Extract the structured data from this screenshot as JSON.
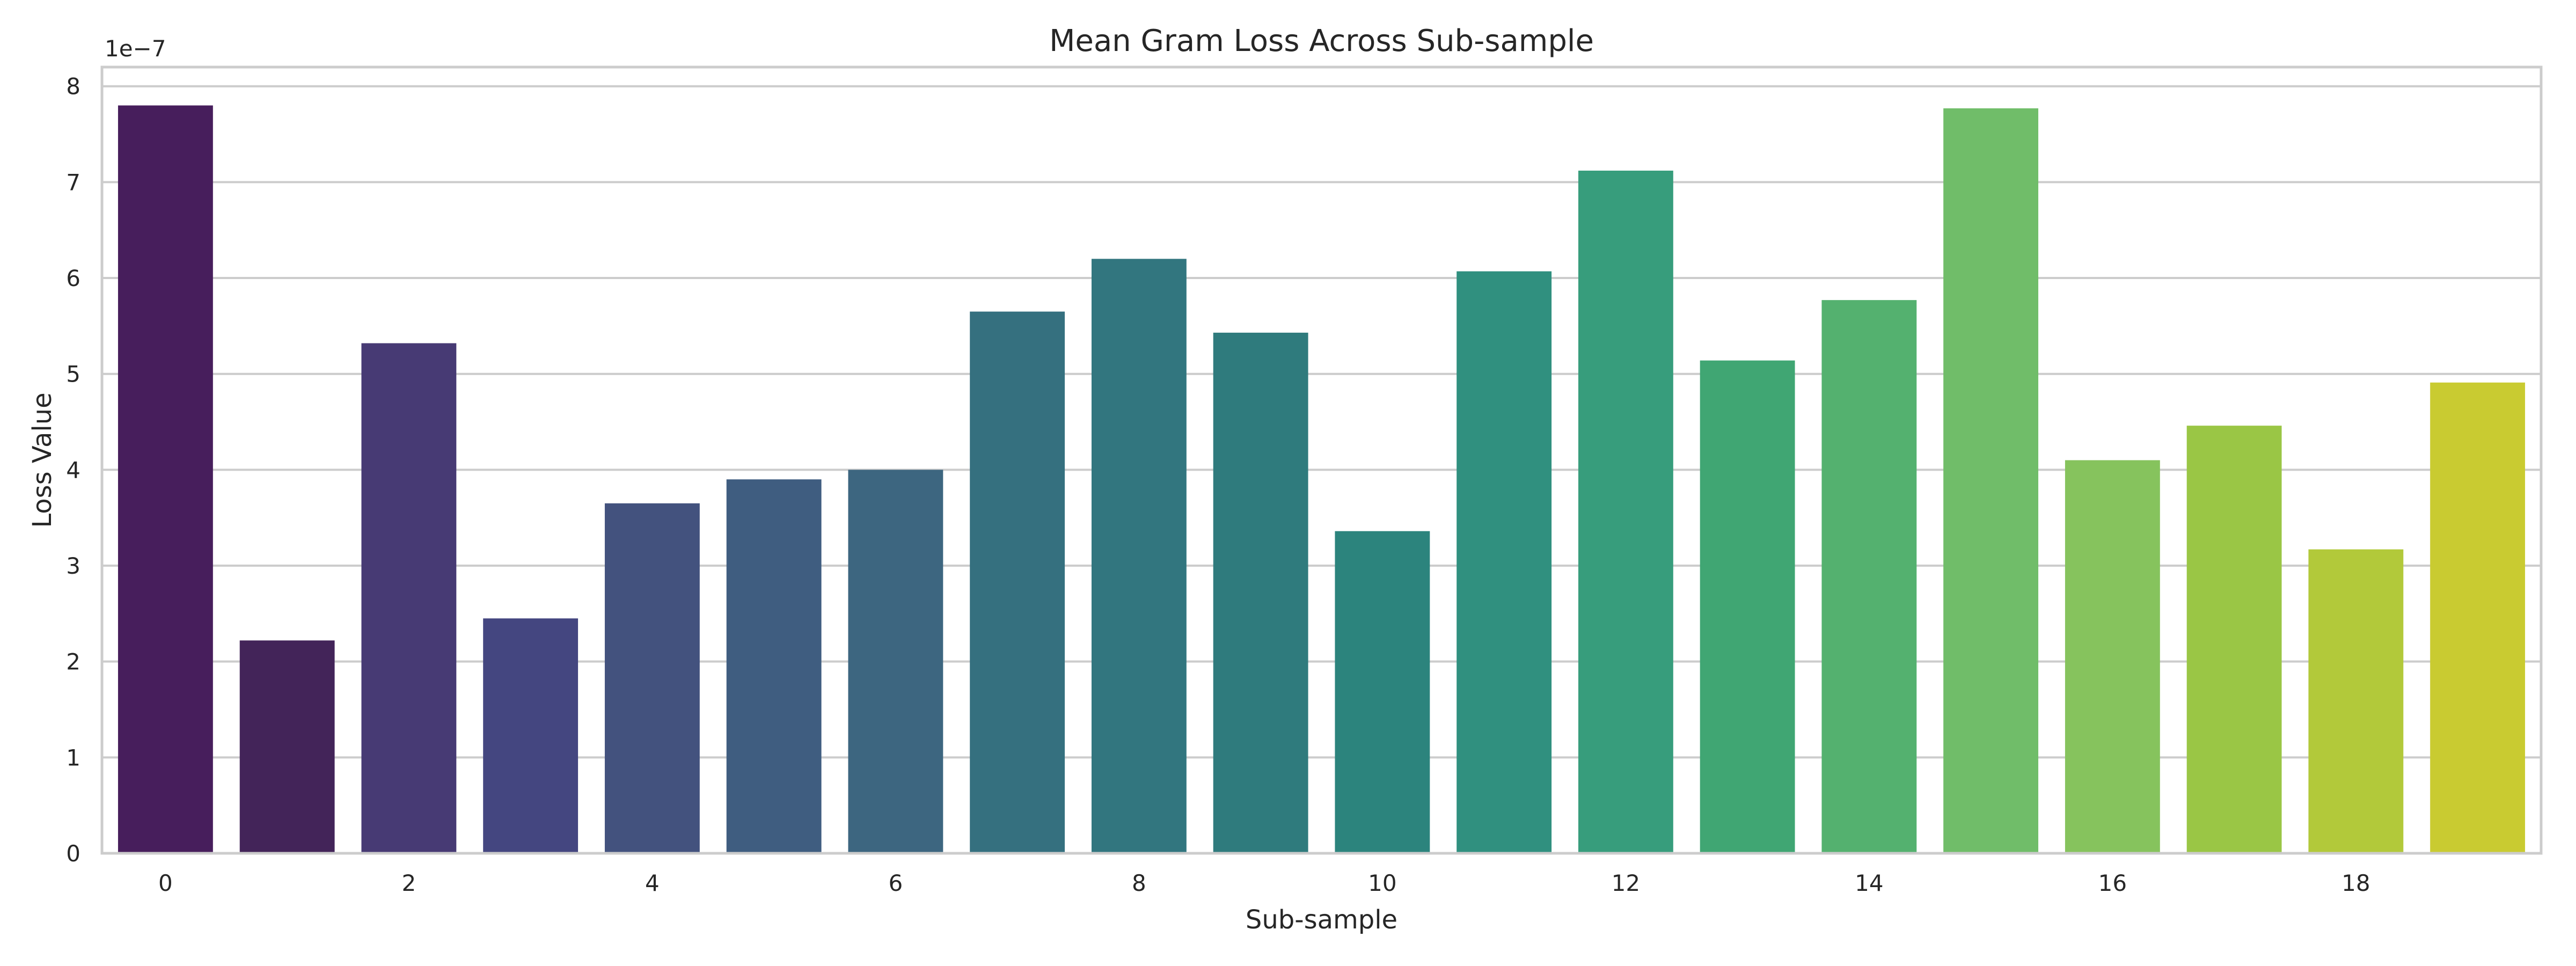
{
  "chart_data": {
    "type": "bar",
    "title": "Mean Gram Loss Across Sub-sample",
    "xlabel": "Sub-sample",
    "ylabel": "Loss Value",
    "y_offset_label": "1e−7",
    "categories": [
      "0",
      "1",
      "2",
      "3",
      "4",
      "5",
      "6",
      "7",
      "8",
      "9",
      "10",
      "11",
      "12",
      "13",
      "14",
      "15",
      "16",
      "17",
      "18",
      "19"
    ],
    "x_tick_labels": [
      "0",
      "2",
      "4",
      "6",
      "8",
      "10",
      "12",
      "14",
      "16",
      "18"
    ],
    "y_tick_values": [
      0,
      1,
      2,
      3,
      4,
      5,
      6,
      7,
      8
    ],
    "y_tick_labels": [
      "0",
      "1",
      "2",
      "3",
      "4",
      "5",
      "6",
      "7",
      "8"
    ],
    "values": [
      7.8,
      2.22,
      5.32,
      2.45,
      3.65,
      3.9,
      4.0,
      5.65,
      6.2,
      5.43,
      3.36,
      6.07,
      7.12,
      5.14,
      5.77,
      7.77,
      4.1,
      4.46,
      3.17,
      4.91
    ],
    "value_scale": 1e-07,
    "ylim": [
      0,
      8.2
    ],
    "grid": "horizontal",
    "colors": [
      "#471e5c",
      "#432459",
      "#473a74",
      "#444680",
      "#43527e",
      "#3f5d80",
      "#3d6680",
      "#35707f",
      "#32767f",
      "#2f7b7d",
      "#2c847d",
      "#30907f",
      "#379d7c",
      "#40a673",
      "#54b16f",
      "#70bd69",
      "#86c35d",
      "#9ac645",
      "#b2c93a",
      "#c9cb31"
    ]
  }
}
